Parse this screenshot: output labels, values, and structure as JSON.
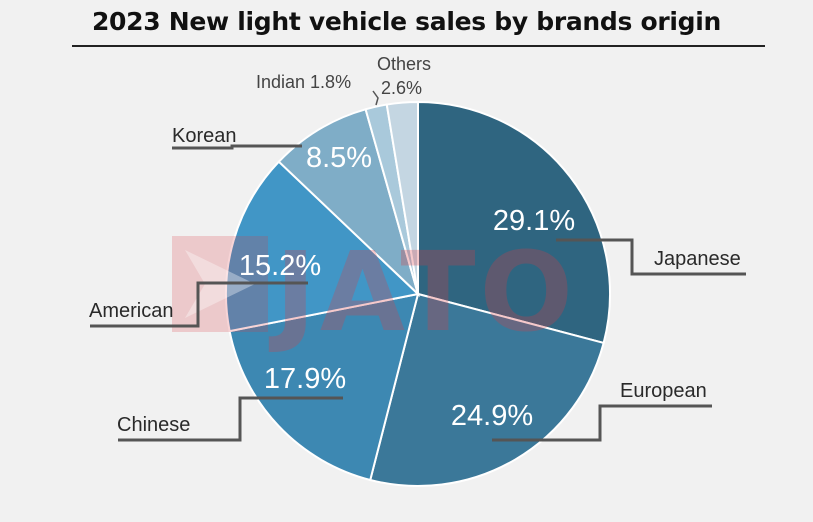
{
  "chart_data": {
    "type": "pie",
    "title": "2023 New light vehicle sales by brands origin",
    "slices": [
      {
        "name": "Japanese",
        "value": 29.1,
        "label": "29.1%",
        "color": "#2f6580"
      },
      {
        "name": "European",
        "value": 24.9,
        "label": "24.9%",
        "color": "#3b7899"
      },
      {
        "name": "Chinese",
        "value": 17.9,
        "label": "17.9%",
        "color": "#3d88b2"
      },
      {
        "name": "American",
        "value": 15.2,
        "label": "15.2%",
        "color": "#4196c6"
      },
      {
        "name": "Korean",
        "value": 8.5,
        "label": "8.5%",
        "color": "#7fadc7"
      },
      {
        "name": "Indian",
        "value": 1.8,
        "label": "Indian 1.8%",
        "color": "#a9c9db"
      },
      {
        "name": "Others",
        "value": 2.6,
        "label": "2.6%",
        "color": "#c4d6e2"
      }
    ]
  },
  "watermark": "JATO",
  "colors": {
    "leader": "#555555"
  }
}
